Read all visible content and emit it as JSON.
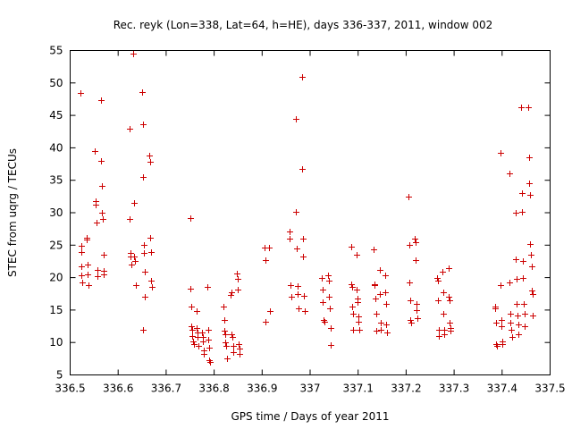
{
  "chart_data": {
    "type": "scatter",
    "title": "Rec. reyk (Lon=338, Lat=64, h=HE), days 336-337, 2011, window 002",
    "xlabel": "GPS time / Days of year 2011",
    "ylabel": "STEC from uqrg / TECUs",
    "xlim": [
      336.5,
      337.5
    ],
    "ylim": [
      5,
      55
    ],
    "xticks": [
      336.5,
      336.6,
      336.7,
      336.8,
      336.9,
      337,
      337.1,
      337.2,
      337.3,
      337.4,
      337.5
    ],
    "yticks": [
      5,
      10,
      15,
      20,
      25,
      30,
      35,
      40,
      45,
      50,
      55
    ],
    "x_tick_labels": [
      "336.5",
      "336.6",
      "336.7",
      "336.8",
      "336.9",
      "337",
      "337.1",
      "337.2",
      "337.3",
      "337.4",
      "337.5"
    ],
    "y_tick_labels": [
      "5",
      "10",
      "15",
      "20",
      "25",
      "30",
      "35",
      "40",
      "45",
      "50",
      "55"
    ],
    "grid": false,
    "marker": "plus",
    "color": "#cc0000",
    "series": [
      {
        "name": "",
        "points": [
          [
            336.522,
            48.5
          ],
          [
            336.523,
            24.9
          ],
          [
            336.523,
            24.0
          ],
          [
            336.524,
            21.8
          ],
          [
            336.524,
            20.3
          ],
          [
            336.525,
            19.3
          ],
          [
            336.534,
            26.2
          ],
          [
            336.535,
            25.8
          ],
          [
            336.536,
            22.0
          ],
          [
            336.537,
            20.5
          ],
          [
            336.538,
            18.9
          ],
          [
            336.552,
            39.5
          ],
          [
            336.553,
            31.8
          ],
          [
            336.554,
            31.2
          ],
          [
            336.555,
            28.5
          ],
          [
            336.556,
            21.2
          ],
          [
            336.557,
            20.2
          ],
          [
            336.564,
            47.3
          ],
          [
            336.565,
            38.0
          ],
          [
            336.566,
            34.1
          ],
          [
            336.567,
            30.0
          ],
          [
            336.568,
            29.0
          ],
          [
            336.569,
            23.5
          ],
          [
            336.57,
            21.0
          ],
          [
            336.57,
            20.5
          ],
          [
            336.623,
            43.0
          ],
          [
            336.624,
            29.0
          ],
          [
            336.625,
            23.8
          ],
          [
            336.626,
            23.3
          ],
          [
            336.627,
            22.0
          ],
          [
            336.632,
            54.5
          ],
          [
            336.633,
            31.5
          ],
          [
            336.634,
            23.3
          ],
          [
            336.635,
            22.5
          ],
          [
            336.636,
            18.9
          ],
          [
            336.65,
            48.6
          ],
          [
            336.651,
            43.6
          ],
          [
            336.652,
            35.5
          ],
          [
            336.653,
            25.0
          ],
          [
            336.654,
            23.8
          ],
          [
            336.655,
            20.9
          ],
          [
            336.656,
            17.0
          ],
          [
            336.652,
            12.0
          ],
          [
            336.665,
            38.8
          ],
          [
            336.666,
            37.8
          ],
          [
            336.667,
            26.2
          ],
          [
            336.668,
            24.0
          ],
          [
            336.669,
            19.5
          ],
          [
            336.67,
            18.5
          ],
          [
            336.75,
            29.2
          ],
          [
            336.751,
            18.3
          ],
          [
            336.752,
            15.6
          ],
          [
            336.753,
            12.5
          ],
          [
            336.754,
            11.9
          ],
          [
            336.755,
            11.0
          ],
          [
            336.756,
            10.2
          ],
          [
            336.757,
            9.8
          ],
          [
            336.763,
            14.8
          ],
          [
            336.764,
            12.2
          ],
          [
            336.765,
            11.5
          ],
          [
            336.766,
            10.8
          ],
          [
            336.767,
            9.5
          ],
          [
            336.775,
            11.5
          ],
          [
            336.776,
            10.8
          ],
          [
            336.777,
            10.2
          ],
          [
            336.778,
            8.8
          ],
          [
            336.779,
            8.2
          ],
          [
            336.786,
            18.5
          ],
          [
            336.787,
            12.0
          ],
          [
            336.788,
            10.5
          ],
          [
            336.789,
            9.2
          ],
          [
            336.79,
            7.3
          ],
          [
            336.791,
            7.0
          ],
          [
            336.82,
            15.5
          ],
          [
            336.821,
            13.5
          ],
          [
            336.822,
            11.8
          ],
          [
            336.823,
            11.2
          ],
          [
            336.824,
            10.0
          ],
          [
            336.825,
            9.5
          ],
          [
            336.826,
            7.5
          ],
          [
            336.835,
            17.3
          ],
          [
            336.836,
            17.8
          ],
          [
            336.837,
            11.2
          ],
          [
            336.838,
            10.8
          ],
          [
            336.839,
            9.5
          ],
          [
            336.84,
            8.5
          ],
          [
            336.848,
            20.7
          ],
          [
            336.849,
            19.8
          ],
          [
            336.85,
            18.2
          ],
          [
            336.851,
            9.8
          ],
          [
            336.852,
            9.0
          ],
          [
            336.853,
            8.2
          ],
          [
            336.905,
            24.6
          ],
          [
            336.906,
            22.7
          ],
          [
            336.907,
            13.2
          ],
          [
            336.915,
            24.6
          ],
          [
            336.916,
            14.8
          ],
          [
            336.957,
            27.1
          ],
          [
            336.958,
            26.0
          ],
          [
            336.959,
            18.8
          ],
          [
            336.96,
            17.0
          ],
          [
            336.97,
            44.5
          ],
          [
            336.971,
            30.2
          ],
          [
            336.972,
            24.5
          ],
          [
            336.973,
            18.7
          ],
          [
            336.974,
            17.5
          ],
          [
            336.975,
            15.3
          ],
          [
            336.983,
            51.0
          ],
          [
            336.984,
            36.7
          ],
          [
            336.985,
            26.0
          ],
          [
            336.986,
            23.2
          ],
          [
            336.987,
            17.2
          ],
          [
            336.988,
            14.8
          ],
          [
            337.025,
            20.0
          ],
          [
            337.026,
            18.2
          ],
          [
            337.027,
            16.2
          ],
          [
            337.028,
            13.5
          ],
          [
            337.029,
            13.2
          ],
          [
            337.038,
            20.3
          ],
          [
            337.039,
            19.5
          ],
          [
            337.04,
            17.1
          ],
          [
            337.041,
            15.2
          ],
          [
            337.042,
            12.3
          ],
          [
            337.043,
            9.6
          ],
          [
            337.085,
            24.8
          ],
          [
            337.086,
            19.0
          ],
          [
            337.087,
            18.5
          ],
          [
            337.088,
            15.5
          ],
          [
            337.089,
            14.5
          ],
          [
            337.09,
            12.0
          ],
          [
            337.096,
            23.5
          ],
          [
            337.097,
            18.2
          ],
          [
            337.098,
            16.8
          ],
          [
            337.099,
            16.2
          ],
          [
            337.1,
            14.0
          ],
          [
            337.101,
            13.2
          ],
          [
            337.102,
            11.9
          ],
          [
            337.133,
            24.3
          ],
          [
            337.134,
            19.0
          ],
          [
            337.135,
            18.8
          ],
          [
            337.136,
            16.8
          ],
          [
            337.137,
            14.5
          ],
          [
            337.138,
            11.8
          ],
          [
            337.145,
            21.2
          ],
          [
            337.146,
            17.5
          ],
          [
            337.147,
            13.0
          ],
          [
            337.148,
            11.9
          ],
          [
            337.156,
            20.3
          ],
          [
            337.157,
            17.8
          ],
          [
            337.158,
            16.0
          ],
          [
            337.159,
            12.8
          ],
          [
            337.16,
            11.5
          ],
          [
            337.205,
            32.5
          ],
          [
            337.206,
            25.0
          ],
          [
            337.207,
            19.2
          ],
          [
            337.208,
            16.5
          ],
          [
            337.209,
            13.5
          ],
          [
            337.21,
            13.0
          ],
          [
            337.218,
            26.0
          ],
          [
            337.219,
            25.5
          ],
          [
            337.22,
            22.7
          ],
          [
            337.221,
            16.0
          ],
          [
            337.222,
            15.0
          ],
          [
            337.223,
            13.8
          ],
          [
            337.265,
            19.9
          ],
          [
            337.266,
            19.5
          ],
          [
            337.267,
            16.5
          ],
          [
            337.268,
            12.0
          ],
          [
            337.269,
            11.0
          ],
          [
            337.276,
            20.9
          ],
          [
            337.277,
            17.8
          ],
          [
            337.278,
            14.5
          ],
          [
            337.279,
            12.0
          ],
          [
            337.28,
            11.2
          ],
          [
            337.288,
            21.5
          ],
          [
            337.289,
            17.0
          ],
          [
            337.29,
            16.5
          ],
          [
            337.291,
            13.0
          ],
          [
            337.292,
            12.2
          ],
          [
            337.293,
            11.8
          ],
          [
            337.385,
            15.5
          ],
          [
            337.386,
            15.2
          ],
          [
            337.387,
            13.0
          ],
          [
            337.388,
            9.8
          ],
          [
            337.389,
            9.5
          ],
          [
            337.396,
            39.2
          ],
          [
            337.397,
            18.8
          ],
          [
            337.398,
            13.5
          ],
          [
            337.399,
            12.5
          ],
          [
            337.4,
            10.2
          ],
          [
            337.401,
            9.8
          ],
          [
            337.415,
            36.0
          ],
          [
            337.416,
            19.2
          ],
          [
            337.417,
            14.5
          ],
          [
            337.418,
            13.0
          ],
          [
            337.419,
            12.0
          ],
          [
            337.42,
            10.8
          ],
          [
            337.428,
            30.0
          ],
          [
            337.429,
            22.8
          ],
          [
            337.43,
            19.8
          ],
          [
            337.431,
            16.0
          ],
          [
            337.432,
            14.2
          ],
          [
            337.433,
            12.8
          ],
          [
            337.434,
            11.2
          ],
          [
            337.44,
            46.2
          ],
          [
            337.441,
            33.0
          ],
          [
            337.442,
            30.2
          ],
          [
            337.443,
            22.5
          ],
          [
            337.444,
            20.0
          ],
          [
            337.445,
            16.0
          ],
          [
            337.446,
            14.5
          ],
          [
            337.447,
            12.5
          ],
          [
            337.455,
            46.3
          ],
          [
            337.456,
            38.5
          ],
          [
            337.457,
            34.5
          ],
          [
            337.458,
            32.7
          ],
          [
            337.459,
            25.2
          ],
          [
            337.46,
            23.5
          ],
          [
            337.461,
            21.8
          ],
          [
            337.462,
            18.0
          ],
          [
            337.463,
            17.5
          ],
          [
            337.464,
            14.2
          ]
        ]
      }
    ]
  }
}
